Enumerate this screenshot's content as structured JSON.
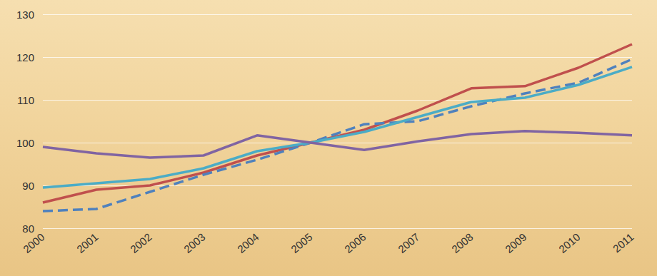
{
  "chart_data": {
    "type": "line",
    "categories": [
      "2000",
      "2001",
      "2002",
      "2003",
      "2004",
      "2005",
      "2006",
      "2007",
      "2008",
      "2009",
      "2010",
      "2011"
    ],
    "series": [
      {
        "color": "#c0504d",
        "line_style": "solid",
        "values": [
          86,
          89,
          90,
          93,
          97,
          100,
          103,
          107.5,
          112.7,
          113.2,
          117.5,
          123
        ]
      },
      {
        "color": "#4f81bd",
        "line_style": "dashed",
        "values": [
          84,
          84.5,
          88.5,
          92.5,
          96,
          100,
          104.3,
          105,
          108.5,
          111.5,
          114,
          119.5
        ]
      },
      {
        "color": "#4bacc6",
        "line_style": "solid",
        "values": [
          89.5,
          90.5,
          91.5,
          94,
          98,
          100,
          102.5,
          106,
          109.5,
          110.5,
          113.5,
          117.7
        ]
      },
      {
        "color": "#8064a2",
        "line_style": "solid",
        "values": [
          99,
          97.5,
          96.5,
          97,
          101.7,
          100,
          98.3,
          100.3,
          102,
          102.7,
          102.3,
          101.7
        ]
      }
    ],
    "ylim": [
      80,
      130
    ],
    "yticks": [
      80,
      90,
      100,
      110,
      120,
      130
    ],
    "grid": true
  }
}
